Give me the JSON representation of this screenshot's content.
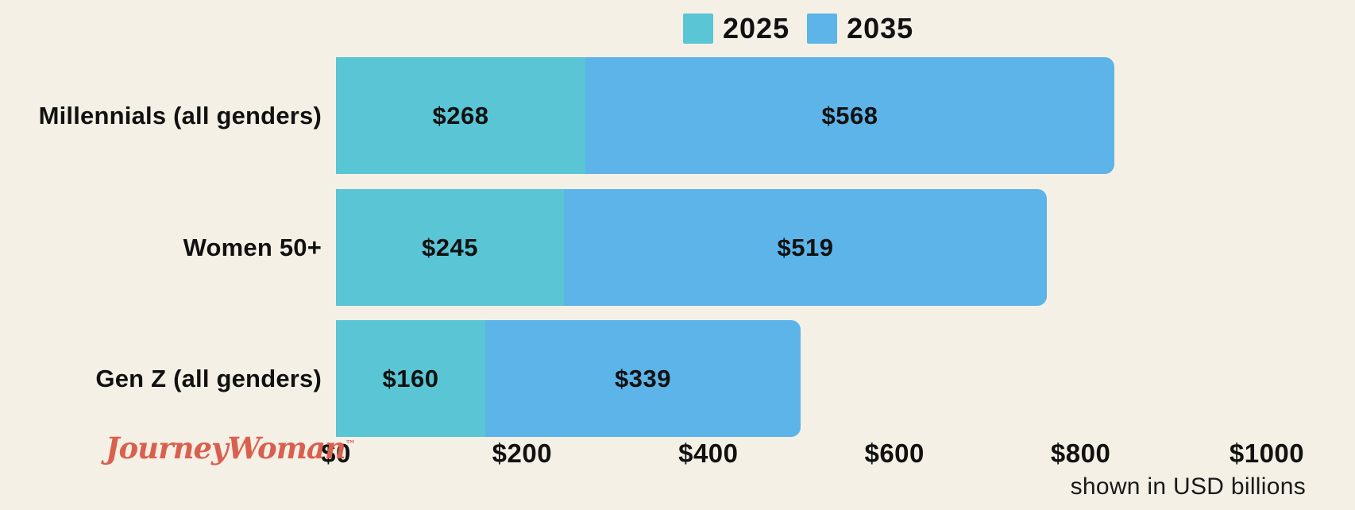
{
  "chart_data": {
    "type": "bar",
    "orientation": "horizontal",
    "stacked": true,
    "categories": [
      "Millennials (all genders)",
      "Women 50+",
      "Gen Z (all genders)"
    ],
    "series": [
      {
        "name": "2025",
        "color": "#5ac5d5",
        "values": [
          268,
          245,
          160
        ]
      },
      {
        "name": "2035",
        "color": "#5cb4e8",
        "values": [
          568,
          519,
          339
        ]
      }
    ],
    "value_labels": [
      [
        "$268",
        "$568"
      ],
      [
        "$245",
        "$519"
      ],
      [
        "$160",
        "$339"
      ]
    ],
    "x_ticks": [
      {
        "label": "$0",
        "value": 0
      },
      {
        "label": "$200",
        "value": 200
      },
      {
        "label": "$400",
        "value": 400
      },
      {
        "label": "$600",
        "value": 600
      },
      {
        "label": "$800",
        "value": 800
      },
      {
        "label": "$1000",
        "value": 1000
      }
    ],
    "xlim": [
      0,
      1000
    ],
    "legend_position": "top",
    "grid": false,
    "note": "shown in USD billions"
  },
  "footer": {
    "note": "shown in USD billions",
    "logo_text": "JourneyWoman",
    "logo_tm": "™",
    "logo_color": "#d9604f"
  },
  "colors": {
    "background": "#f5f0e5",
    "text": "#111111",
    "series_2025": "#5ac5d5",
    "series_2035": "#5cb4e8",
    "logo": "#d9604f"
  }
}
